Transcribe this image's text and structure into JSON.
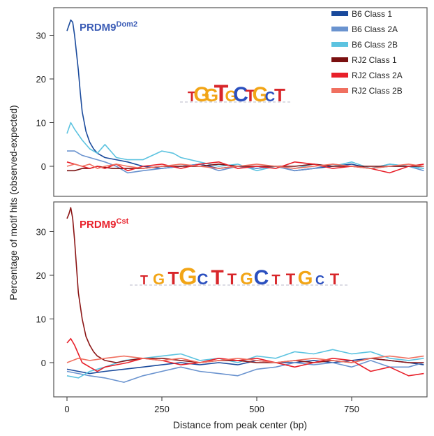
{
  "chart_data": [
    {
      "type": "line",
      "title": "PRDM9",
      "title_sup": "Dom2",
      "title_color": "#3a5bb5",
      "ylabel": "Percentage of motif hits (observed-expected)",
      "xlabel": "",
      "xlim": [
        -20,
        950
      ],
      "ylim": [
        -6,
        36
      ],
      "yticks": [
        0,
        10,
        20,
        30
      ],
      "xticks": [
        0,
        250,
        500,
        750
      ],
      "legend_position": "top-right",
      "motif_logo": "TGGTGCTGCT",
      "series": [
        {
          "name": "B6 Class 1",
          "color": "#1a4a9c",
          "x": [
            0,
            10,
            15,
            20,
            25,
            30,
            35,
            40,
            50,
            60,
            70,
            80,
            100,
            130,
            160,
            200,
            250,
            300,
            350,
            400,
            450,
            500,
            550,
            600,
            650,
            700,
            750,
            800,
            850,
            900,
            940
          ],
          "y": [
            31,
            33.5,
            33,
            30,
            26,
            22,
            17,
            12.5,
            8,
            5.5,
            4,
            3,
            2,
            1.5,
            1,
            0,
            -0.5,
            0,
            0.5,
            -0.5,
            0,
            -0.5,
            0,
            -1,
            -0.5,
            0,
            0.5,
            -0.5,
            0,
            0,
            -0.5
          ]
        },
        {
          "name": "B6 Class 2A",
          "color": "#6a93cf",
          "x": [
            0,
            20,
            40,
            60,
            80,
            100,
            130,
            160,
            200,
            250,
            300,
            350,
            400,
            450,
            500,
            550,
            600,
            650,
            700,
            750,
            800,
            850,
            900,
            940
          ],
          "y": [
            3.5,
            3.5,
            2.5,
            2,
            1.5,
            1,
            0,
            -1.5,
            -1,
            -0.5,
            0,
            0.5,
            -1,
            0,
            -0.5,
            0,
            -1,
            -0.5,
            0.5,
            0,
            -0.5,
            0.5,
            0,
            -1
          ]
        },
        {
          "name": "B6 Class 2B",
          "color": "#5cc3e0",
          "x": [
            0,
            10,
            20,
            40,
            60,
            80,
            100,
            130,
            160,
            200,
            250,
            280,
            300,
            350,
            400,
            450,
            500,
            550,
            600,
            650,
            700,
            750,
            800,
            850,
            900,
            940
          ],
          "y": [
            7.5,
            10,
            8.5,
            6,
            4,
            3,
            5,
            2,
            1.5,
            1.5,
            3.5,
            3,
            2,
            1,
            0,
            0.5,
            -1,
            0,
            -0.5,
            0.5,
            0,
            1,
            -0.5,
            0.5,
            0,
            -0.5
          ]
        },
        {
          "name": "RJ2 Class 1",
          "color": "#7a1010",
          "x": [
            0,
            20,
            40,
            60,
            80,
            120,
            160,
            200,
            250,
            300,
            350,
            400,
            450,
            500,
            550,
            600,
            650,
            700,
            750,
            800,
            850,
            900,
            940
          ],
          "y": [
            -1,
            -1,
            -0.5,
            -0.5,
            0,
            -0.5,
            -0.5,
            -0.5,
            0,
            0,
            0,
            0.5,
            0,
            0,
            0,
            0,
            0.5,
            0,
            0,
            0,
            0,
            0,
            0
          ]
        },
        {
          "name": "RJ2 Class 2A",
          "color": "#e8202a",
          "x": [
            0,
            20,
            40,
            60,
            80,
            100,
            130,
            160,
            200,
            250,
            300,
            350,
            400,
            450,
            500,
            550,
            600,
            650,
            700,
            750,
            800,
            850,
            900,
            940
          ],
          "y": [
            1,
            0.5,
            0,
            -0.5,
            0,
            -0.5,
            0.5,
            -1,
            0,
            0.5,
            -0.5,
            0.5,
            1,
            -0.5,
            0,
            -0.5,
            1,
            0.5,
            -0.5,
            0,
            -0.5,
            -1.5,
            0,
            0.5
          ]
        },
        {
          "name": "RJ2 Class 2B",
          "color": "#f07060",
          "x": [
            0,
            20,
            40,
            60,
            80,
            100,
            130,
            160,
            200,
            250,
            300,
            350,
            400,
            450,
            500,
            550,
            600,
            650,
            700,
            750,
            800,
            850,
            900,
            940
          ],
          "y": [
            0,
            0.5,
            0,
            0.5,
            -0.5,
            0,
            0.5,
            0,
            -0.5,
            0,
            0.5,
            0,
            -0.5,
            0,
            0.5,
            0,
            -0.5,
            0,
            0.5,
            0,
            -0.5,
            0,
            0.5,
            0
          ]
        }
      ]
    },
    {
      "type": "line",
      "title": "PRDM9",
      "title_sup": "Cst",
      "title_color": "#e8202a",
      "ylabel": "Percentage of motif hits (observed-expected)",
      "xlabel": "Distance from peak center (bp)",
      "xlim": [
        -20,
        950
      ],
      "ylim": [
        -7,
        38
      ],
      "yticks": [
        0,
        10,
        20,
        30
      ],
      "xticks": [
        0,
        250,
        500,
        750
      ],
      "motif_logo": "TGTGCTTGCTTGCT",
      "series": [
        {
          "name": "B6 Class 1",
          "color": "#1a4a9c",
          "x": [
            0,
            30,
            60,
            100,
            150,
            200,
            250,
            300,
            350,
            400,
            450,
            500,
            550,
            600,
            650,
            700,
            750,
            800,
            850,
            900,
            940
          ],
          "y": [
            -1.5,
            -2,
            -2.5,
            -2,
            -1.5,
            -1,
            -0.5,
            0,
            -0.5,
            0,
            -0.5,
            0.5,
            0,
            0,
            0.5,
            0,
            0.5,
            1,
            0.5,
            0,
            -0.5
          ]
        },
        {
          "name": "B6 Class 2A",
          "color": "#6a93cf",
          "x": [
            0,
            30,
            60,
            100,
            150,
            200,
            250,
            300,
            350,
            400,
            450,
            500,
            550,
            600,
            650,
            700,
            750,
            800,
            850,
            900,
            940
          ],
          "y": [
            -2,
            -2.5,
            -3,
            -3.5,
            -4.5,
            -3,
            -2,
            -1,
            -2,
            -2.5,
            -3,
            -1.5,
            -1,
            0,
            -0.5,
            0,
            -1,
            0.5,
            -1,
            -1,
            0
          ]
        },
        {
          "name": "B6 Class 2B",
          "color": "#5cc3e0",
          "x": [
            0,
            30,
            60,
            100,
            150,
            200,
            250,
            300,
            350,
            400,
            450,
            500,
            550,
            600,
            650,
            700,
            750,
            800,
            850,
            900,
            940
          ],
          "y": [
            -3,
            -3.5,
            -2,
            -1,
            0.5,
            1,
            1.5,
            2,
            0.5,
            1,
            0,
            1.5,
            1,
            2.5,
            2,
            3,
            2,
            2.5,
            1,
            0.5,
            1
          ]
        },
        {
          "name": "RJ2 Class 1",
          "color": "#8b1515",
          "x": [
            0,
            5,
            10,
            15,
            20,
            25,
            30,
            40,
            50,
            60,
            70,
            80,
            100,
            130,
            160,
            200,
            250,
            300,
            350,
            400,
            450,
            500,
            550,
            600,
            650,
            700,
            750,
            800,
            850,
            900,
            940
          ],
          "y": [
            33,
            34,
            35.5,
            33,
            28,
            22,
            16,
            10,
            6,
            4,
            2.5,
            1.5,
            0.5,
            0,
            0.5,
            1,
            1,
            0.5,
            0,
            0.5,
            0.5,
            0,
            0,
            0.5,
            0,
            0.5,
            0,
            1,
            0.5,
            0,
            0
          ]
        },
        {
          "name": "RJ2 Class 2A",
          "color": "#e8202a",
          "x": [
            0,
            10,
            20,
            30,
            40,
            60,
            80,
            100,
            130,
            160,
            200,
            250,
            300,
            350,
            400,
            450,
            500,
            550,
            600,
            650,
            700,
            750,
            800,
            850,
            900,
            940
          ],
          "y": [
            4.5,
            5.5,
            4,
            2,
            0,
            -1,
            -2,
            -1,
            -0.5,
            0,
            1,
            0.5,
            -0.5,
            0,
            1,
            0.5,
            1,
            0,
            -1,
            0,
            1,
            0.5,
            -2,
            -1,
            -3,
            -2.5
          ]
        },
        {
          "name": "RJ2 Class 2B",
          "color": "#f07060",
          "x": [
            0,
            30,
            60,
            100,
            150,
            200,
            250,
            300,
            350,
            400,
            450,
            500,
            550,
            600,
            650,
            700,
            750,
            800,
            850,
            900,
            940
          ],
          "y": [
            0,
            1,
            0.5,
            1,
            1.5,
            1,
            0.5,
            1,
            0,
            0.5,
            1,
            0.5,
            0,
            0.5,
            1,
            0.5,
            0,
            1,
            1.5,
            1,
            1.5
          ]
        }
      ]
    }
  ]
}
